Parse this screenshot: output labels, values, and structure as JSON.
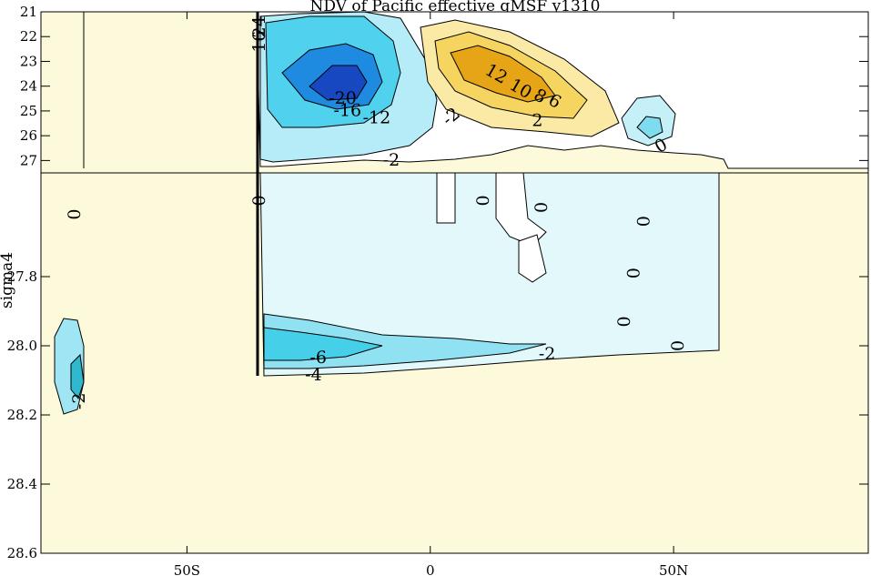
{
  "chart_data": {
    "type": "contour",
    "title": "NDV of Pacific effective gMSF y1310",
    "ylabel": "sigma4",
    "x_axis": {
      "range": [
        -80,
        90
      ],
      "ticks": [
        {
          "value": -50,
          "label": "50S"
        },
        {
          "value": 0,
          "label": "0"
        },
        {
          "value": 50,
          "label": "50N"
        }
      ]
    },
    "y_axis_upper": {
      "range": [
        21,
        27.5
      ],
      "ticks": [
        {
          "value": 21,
          "label": "21"
        },
        {
          "value": 22,
          "label": "22"
        },
        {
          "value": 23,
          "label": "23"
        },
        {
          "value": 24,
          "label": "24"
        },
        {
          "value": 25,
          "label": "25"
        },
        {
          "value": 26,
          "label": "26"
        },
        {
          "value": 27,
          "label": "27"
        }
      ]
    },
    "y_axis_lower": {
      "range": [
        27.5,
        28.6
      ],
      "ticks": [
        {
          "value": 27.8,
          "label": "27.8"
        },
        {
          "value": 28.0,
          "label": "28.0"
        },
        {
          "value": 28.2,
          "label": "28.2"
        },
        {
          "value": 28.4,
          "label": "28.4"
        },
        {
          "value": 28.6,
          "label": "28.6"
        }
      ]
    },
    "colors": {
      "land": "#fdfadc",
      "negative_weak": "#e2f8fb",
      "negative_mid": "#50d2ee",
      "negative_strong": "#1e6fd6",
      "negative_max": "#1748c2",
      "positive_weak": "#fbeaa6",
      "positive_mid": "#f5d460",
      "positive_strong": "#e6a417"
    },
    "contour_labels": [
      {
        "text": "24",
        "x": -34,
        "y": 21.6,
        "rotate": -90
      },
      {
        "text": "16",
        "x": -34,
        "y": 22.2,
        "rotate": -90
      },
      {
        "text": "-20",
        "x": -18,
        "y": 24.7,
        "rotate": 0
      },
      {
        "text": "-16",
        "x": -17,
        "y": 25.2,
        "rotate": 0
      },
      {
        "text": "-12",
        "x": -11,
        "y": 25.5,
        "rotate": 0
      },
      {
        "text": "-2",
        "x": 5,
        "y": 25.4,
        "rotate": -40
      },
      {
        "text": "12",
        "x": 13,
        "y": 23.7,
        "rotate": 30
      },
      {
        "text": "10",
        "x": 18,
        "y": 24.3,
        "rotate": 30
      },
      {
        "text": "8",
        "x": 22,
        "y": 24.6,
        "rotate": 30
      },
      {
        "text": "6",
        "x": 25,
        "y": 24.8,
        "rotate": 30
      },
      {
        "text": "2",
        "x": 22,
        "y": 25.6,
        "rotate": 0
      },
      {
        "text": "-2",
        "x": -8,
        "y": 27.2,
        "rotate": 0
      },
      {
        "text": "0",
        "x": 48,
        "y": 26.6,
        "rotate": -30
      },
      {
        "text": "0",
        "x": -72,
        "y": 27.62,
        "rotate": -90
      },
      {
        "text": "0",
        "x": -34,
        "y": 27.58,
        "rotate": -90
      },
      {
        "text": "0",
        "x": 12,
        "y": 27.58,
        "rotate": -90
      },
      {
        "text": "0",
        "x": 24,
        "y": 27.6,
        "rotate": -90
      },
      {
        "text": "0",
        "x": 45,
        "y": 27.64,
        "rotate": -90
      },
      {
        "text": "0",
        "x": 43,
        "y": 27.79,
        "rotate": -90
      },
      {
        "text": "0",
        "x": 41,
        "y": 27.93,
        "rotate": -90
      },
      {
        "text": "0",
        "x": 52,
        "y": 28.0,
        "rotate": -90
      },
      {
        "text": "-6",
        "x": -23,
        "y": 28.05,
        "rotate": 0
      },
      {
        "text": "-4",
        "x": -24,
        "y": 28.1,
        "rotate": 0
      },
      {
        "text": "-2",
        "x": 24,
        "y": 28.04,
        "rotate": 0
      },
      {
        "text": "-2",
        "x": -71,
        "y": 28.16,
        "rotate": -90
      }
    ]
  }
}
